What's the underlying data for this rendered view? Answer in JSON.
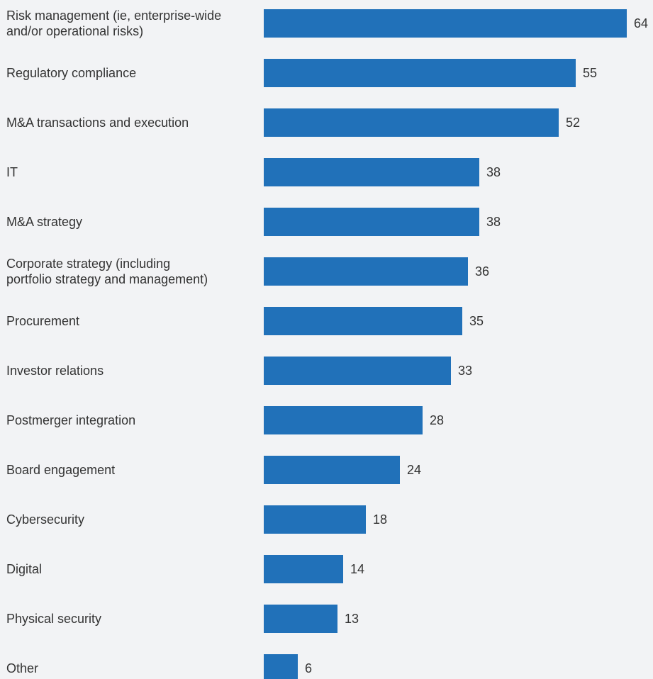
{
  "chart_data": {
    "type": "bar",
    "orientation": "horizontal",
    "categories": [
      [
        "Risk management (ie, enterprise-wide",
        "and/or operational risks)"
      ],
      [
        "Regulatory compliance"
      ],
      [
        "M&A transactions and execution"
      ],
      [
        "IT"
      ],
      [
        "M&A strategy"
      ],
      [
        "Corporate strategy (including",
        "portfolio strategy and management)"
      ],
      [
        "Procurement"
      ],
      [
        "Investor relations"
      ],
      [
        "Postmerger integration"
      ],
      [
        "Board engagement"
      ],
      [
        "Cybersecurity"
      ],
      [
        "Digital"
      ],
      [
        "Physical security"
      ],
      [
        "Other"
      ]
    ],
    "values": [
      64,
      55,
      52,
      38,
      38,
      36,
      35,
      33,
      28,
      24,
      18,
      14,
      13,
      6
    ],
    "xlim": [
      0,
      64
    ],
    "grid": false,
    "bar_color": "#2171b9",
    "label_color": "#333333",
    "background": "#f2f3f5"
  }
}
